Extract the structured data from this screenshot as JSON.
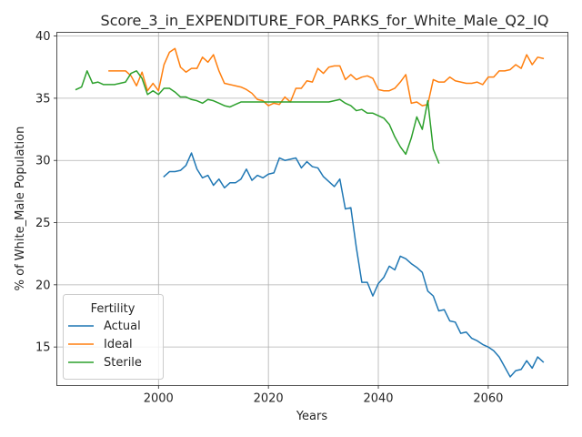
{
  "chart_data": {
    "type": "line",
    "title": "Score_3_in_EXPENDITURE_FOR_PARKS_for_White_Male_Q2_IQ",
    "xlabel": "Years",
    "ylabel": "% of White_Male Population",
    "xlim": [
      1981.5,
      2074.5
    ],
    "ylim": [
      11.9,
      40.3
    ],
    "x_ticks": [
      2000,
      2020,
      2040,
      2060
    ],
    "y_ticks": [
      15,
      20,
      25,
      30,
      35,
      40
    ],
    "grid": true,
    "legend": {
      "title": "Fertility",
      "position": "lower-left"
    },
    "series": [
      {
        "name": "Actual",
        "color": "#1f77b4",
        "x": [
          2001,
          2002,
          2003,
          2004,
          2005,
          2006,
          2007,
          2008,
          2009,
          2010,
          2011,
          2012,
          2013,
          2014,
          2015,
          2016,
          2017,
          2018,
          2019,
          2020,
          2021,
          2022,
          2023,
          2024,
          2025,
          2026,
          2027,
          2028,
          2029,
          2030,
          2031,
          2032,
          2033,
          2034,
          2035,
          2036,
          2037,
          2038,
          2039,
          2040,
          2041,
          2042,
          2043,
          2044,
          2045,
          2046,
          2047,
          2048,
          2049,
          2050,
          2051,
          2052,
          2053,
          2054,
          2055,
          2056,
          2057,
          2058,
          2059,
          2060,
          2061,
          2062,
          2063,
          2064,
          2065,
          2066,
          2067,
          2068,
          2069,
          2070
        ],
        "values": [
          28.7,
          29.1,
          29.1,
          29.2,
          29.6,
          30.6,
          29.3,
          28.6,
          28.8,
          28.0,
          28.5,
          27.8,
          28.2,
          28.2,
          28.5,
          29.3,
          28.4,
          28.8,
          28.6,
          28.9,
          29.0,
          30.2,
          30.0,
          30.1,
          30.2,
          29.4,
          29.9,
          29.5,
          29.4,
          28.7,
          28.3,
          27.9,
          28.5,
          26.1,
          26.2,
          23.0,
          20.2,
          20.2,
          19.1,
          20.1,
          20.6,
          21.5,
          21.2,
          22.3,
          22.1,
          21.7,
          21.4,
          21.0,
          19.5,
          19.1,
          17.9,
          18.0,
          17.1,
          17.0,
          16.1,
          16.2,
          15.7,
          15.5,
          15.2,
          15.0,
          14.7,
          14.2,
          13.4,
          12.6,
          13.1,
          13.2,
          13.9,
          13.3,
          14.2,
          13.8
        ]
      },
      {
        "name": "Ideal",
        "color": "#ff7f0e",
        "x": [
          1991,
          1992,
          1993,
          1994,
          1995,
          1996,
          1997,
          1998,
          1999,
          2000,
          2001,
          2002,
          2003,
          2004,
          2005,
          2006,
          2007,
          2008,
          2009,
          2010,
          2011,
          2012,
          2013,
          2014,
          2015,
          2016,
          2017,
          2018,
          2019,
          2020,
          2021,
          2022,
          2023,
          2024,
          2025,
          2026,
          2027,
          2028,
          2029,
          2030,
          2031,
          2032,
          2033,
          2034,
          2035,
          2036,
          2037,
          2038,
          2039,
          2040,
          2041,
          2042,
          2043,
          2044,
          2045,
          2046,
          2047,
          2048,
          2049,
          2050,
          2051,
          2052,
          2053,
          2054,
          2055,
          2056,
          2057,
          2058,
          2059,
          2060,
          2061,
          2062,
          2063,
          2064,
          2065,
          2066,
          2067,
          2068,
          2069,
          2070
        ],
        "values": [
          37.2,
          37.2,
          37.2,
          37.2,
          36.8,
          36.0,
          37.1,
          35.6,
          36.2,
          35.6,
          37.7,
          38.7,
          39.0,
          37.5,
          37.1,
          37.4,
          37.4,
          38.3,
          37.9,
          38.5,
          37.2,
          36.2,
          36.1,
          36.0,
          35.9,
          35.7,
          35.4,
          34.9,
          34.8,
          34.4,
          34.6,
          34.5,
          35.1,
          34.7,
          35.8,
          35.8,
          36.4,
          36.3,
          37.4,
          37.0,
          37.5,
          37.6,
          37.6,
          36.5,
          36.9,
          36.5,
          36.7,
          36.8,
          36.6,
          35.7,
          35.6,
          35.6,
          35.8,
          36.3,
          36.9,
          34.6,
          34.7,
          34.4,
          34.5,
          36.5,
          36.3,
          36.3,
          36.7,
          36.4,
          36.3,
          36.2,
          36.2,
          36.3,
          36.1,
          36.7,
          36.7,
          37.2,
          37.2,
          37.3,
          37.7,
          37.4,
          38.5,
          37.7,
          38.3,
          38.2
        ]
      },
      {
        "name": "Sterile",
        "color": "#2ca02c",
        "x": [
          1985,
          1986,
          1987,
          1988,
          1989,
          1990,
          1991,
          1992,
          1993,
          1994,
          1995,
          1996,
          1997,
          1998,
          1999,
          2000,
          2001,
          2002,
          2003,
          2004,
          2005,
          2006,
          2007,
          2008,
          2009,
          2010,
          2011,
          2012,
          2013,
          2014,
          2015,
          2016,
          2017,
          2018,
          2019,
          2020,
          2021,
          2022,
          2023,
          2024,
          2025,
          2026,
          2027,
          2028,
          2029,
          2030,
          2031,
          2032,
          2033,
          2034,
          2035,
          2036,
          2037,
          2038,
          2039,
          2040,
          2041,
          2042,
          2043,
          2044,
          2045,
          2046,
          2047,
          2048,
          2049,
          2050,
          2051
        ],
        "values": [
          35.7,
          35.9,
          37.2,
          36.2,
          36.3,
          36.1,
          36.1,
          36.1,
          36.2,
          36.3,
          37.0,
          37.2,
          36.6,
          35.3,
          35.6,
          35.3,
          35.8,
          35.8,
          35.5,
          35.1,
          35.1,
          34.9,
          34.8,
          34.6,
          34.9,
          34.8,
          34.6,
          34.4,
          34.3,
          34.5,
          34.7,
          34.7,
          34.7,
          34.7,
          34.7,
          34.7,
          34.7,
          34.7,
          34.7,
          34.7,
          34.7,
          34.7,
          34.7,
          34.7,
          34.7,
          34.7,
          34.7,
          34.8,
          34.9,
          34.6,
          34.4,
          34.0,
          34.1,
          33.8,
          33.8,
          33.6,
          33.4,
          32.9,
          31.9,
          31.1,
          30.5,
          31.8,
          33.5,
          32.5,
          34.8,
          30.9,
          29.8
        ]
      }
    ]
  }
}
